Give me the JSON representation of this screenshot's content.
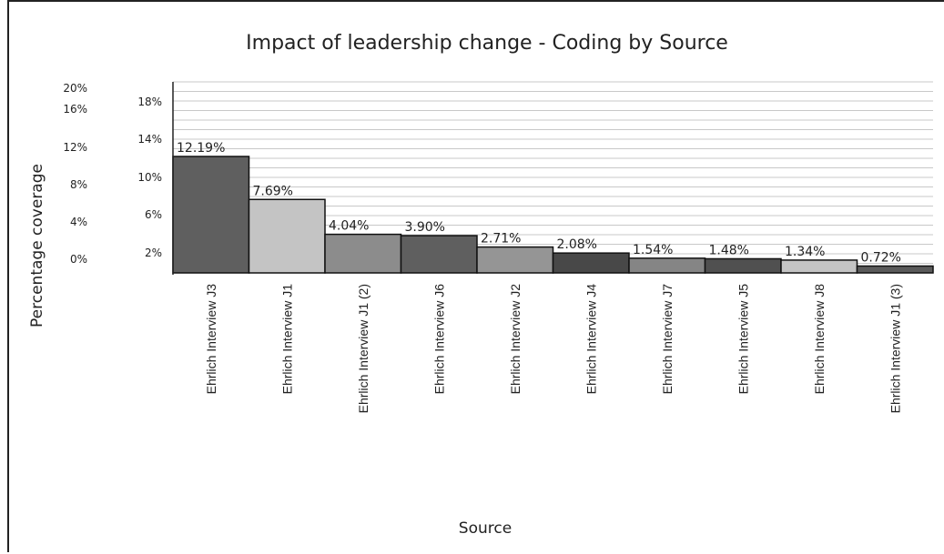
{
  "chart_data": {
    "type": "bar",
    "title": "Impact of leadership change - Coding by Source",
    "xlabel": "Source",
    "ylabel": "Percentage coverage",
    "categories": [
      "Ehrlich Interview J3",
      "Ehrlich Interview J1",
      "Ehrlich Interview J1 (2)",
      "Ehrlich Interview J6",
      "Ehrlich Interview J2",
      "Ehrlich Interview J4",
      "Ehrlich Interview J7",
      "Ehrlich Interview J5",
      "Ehrlich Interview J8",
      "Ehrlich Interview J1 (3)"
    ],
    "values": [
      12.19,
      7.69,
      4.04,
      3.9,
      2.71,
      2.08,
      1.54,
      1.48,
      1.34,
      0.72
    ],
    "value_labels": [
      "12.19%",
      "7.69%",
      "4.04%",
      "3.90%",
      "2.71%",
      "2.08%",
      "1.54%",
      "1.48%",
      "1.34%",
      "0.72%"
    ],
    "bar_colors": [
      "#5f5f5f",
      "#c4c4c4",
      "#8c8c8c",
      "#5f5f5f",
      "#959595",
      "#484848",
      "#858585",
      "#505050",
      "#c4c4c4",
      "#5a5a5a"
    ],
    "ylim": [
      0,
      20
    ],
    "grid": true,
    "y_ticks_back": [
      "0%",
      "4%",
      "8%",
      "12%",
      "16%",
      "20%"
    ],
    "y_ticks_front": [
      "2%",
      "6%",
      "10%",
      "14%",
      "18%"
    ]
  }
}
